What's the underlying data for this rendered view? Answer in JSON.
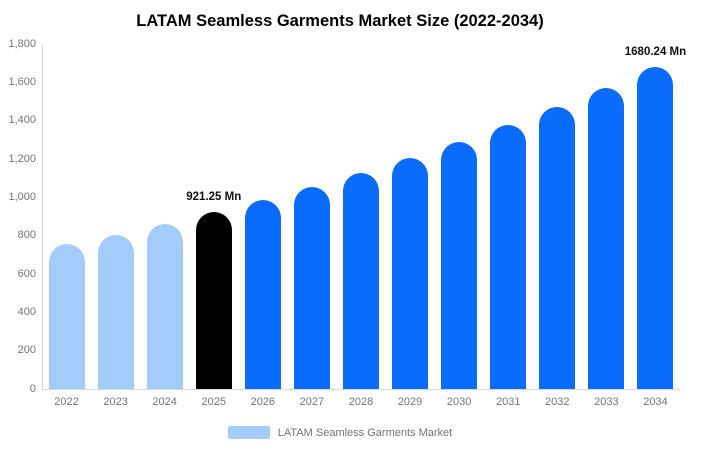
{
  "legend": {
    "label": "LATAM Seamless Garments Market",
    "swatch_color": "#a3ccfa"
  },
  "chart_data": {
    "type": "bar",
    "title": "LATAM Seamless Garments Market Size (2022-2034)",
    "unit": "Mn",
    "categories": [
      "2022",
      "2023",
      "2024",
      "2025",
      "2026",
      "2027",
      "2028",
      "2029",
      "2030",
      "2031",
      "2032",
      "2033",
      "2034"
    ],
    "values": [
      754,
      806,
      862,
      921.25,
      985,
      1053,
      1126,
      1204,
      1287,
      1376,
      1471,
      1572,
      1680.24
    ],
    "bar_colors": [
      "#a3ccfa",
      "#a3ccfa",
      "#a3ccfa",
      "#000000",
      "#0a6cfa",
      "#0a6cfa",
      "#0a6cfa",
      "#0a6cfa",
      "#0a6cfa",
      "#0a6cfa",
      "#0a6cfa",
      "#0a6cfa",
      "#0a6cfa"
    ],
    "ylim": [
      0,
      1800
    ],
    "yticks": [
      {
        "value": 0,
        "label": "0"
      },
      {
        "value": 200,
        "label": "200"
      },
      {
        "value": 400,
        "label": "400"
      },
      {
        "value": 600,
        "label": "600"
      },
      {
        "value": 800,
        "label": "800"
      },
      {
        "value": 1000,
        "label": "1,000"
      },
      {
        "value": 1200,
        "label": "1,200"
      },
      {
        "value": 1400,
        "label": "1,400"
      },
      {
        "value": 1600,
        "label": "1,600"
      },
      {
        "value": 1800,
        "label": "1,800"
      }
    ],
    "grid": false,
    "legend_position": "bottom",
    "annotations": [
      {
        "category": "2025",
        "text": "921.25 Mn"
      },
      {
        "category": "2034",
        "text": "1680.24 Mn"
      }
    ]
  }
}
